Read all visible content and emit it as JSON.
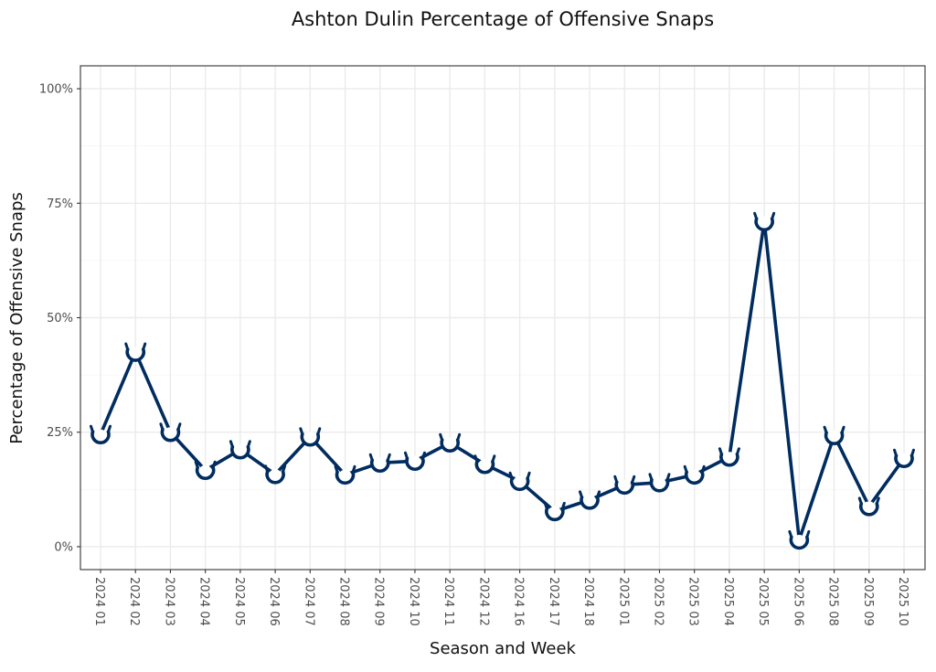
{
  "chart_data": {
    "type": "line",
    "title": "Ashton Dulin Percentage of Offensive Snaps",
    "xlabel": "Season and Week",
    "ylabel": "Percentage of Offensive Snaps",
    "ylim": [
      -0.05,
      1.05
    ],
    "y_ticks": [
      0,
      0.25,
      0.5,
      0.75,
      1.0
    ],
    "y_tick_labels": [
      "0%",
      "25%",
      "50%",
      "75%",
      "100%"
    ],
    "grid": true,
    "legend": "none",
    "marker_icon": "horseshoe-logo-icon",
    "colors": {
      "line": "#002c5f",
      "marker_outline": "#002c5f",
      "marker_fill": "#ffffff"
    },
    "categories": [
      "2024 01",
      "2024 02",
      "2024 03",
      "2024 04",
      "2024 05",
      "2024 06",
      "2024 07",
      "2024 08",
      "2024 09",
      "2024 10",
      "2024 11",
      "2024 12",
      "2024 16",
      "2024 17",
      "2024 18",
      "2025 01",
      "2025 02",
      "2025 03",
      "2025 04",
      "2025 05",
      "2025 06",
      "2025 08",
      "2025 09",
      "2025 10"
    ],
    "values": [
      0.245,
      0.425,
      0.25,
      0.167,
      0.212,
      0.158,
      0.24,
      0.157,
      0.183,
      0.187,
      0.227,
      0.18,
      0.143,
      0.077,
      0.102,
      0.135,
      0.14,
      0.157,
      0.196,
      0.71,
      0.015,
      0.243,
      0.088,
      0.193
    ]
  }
}
